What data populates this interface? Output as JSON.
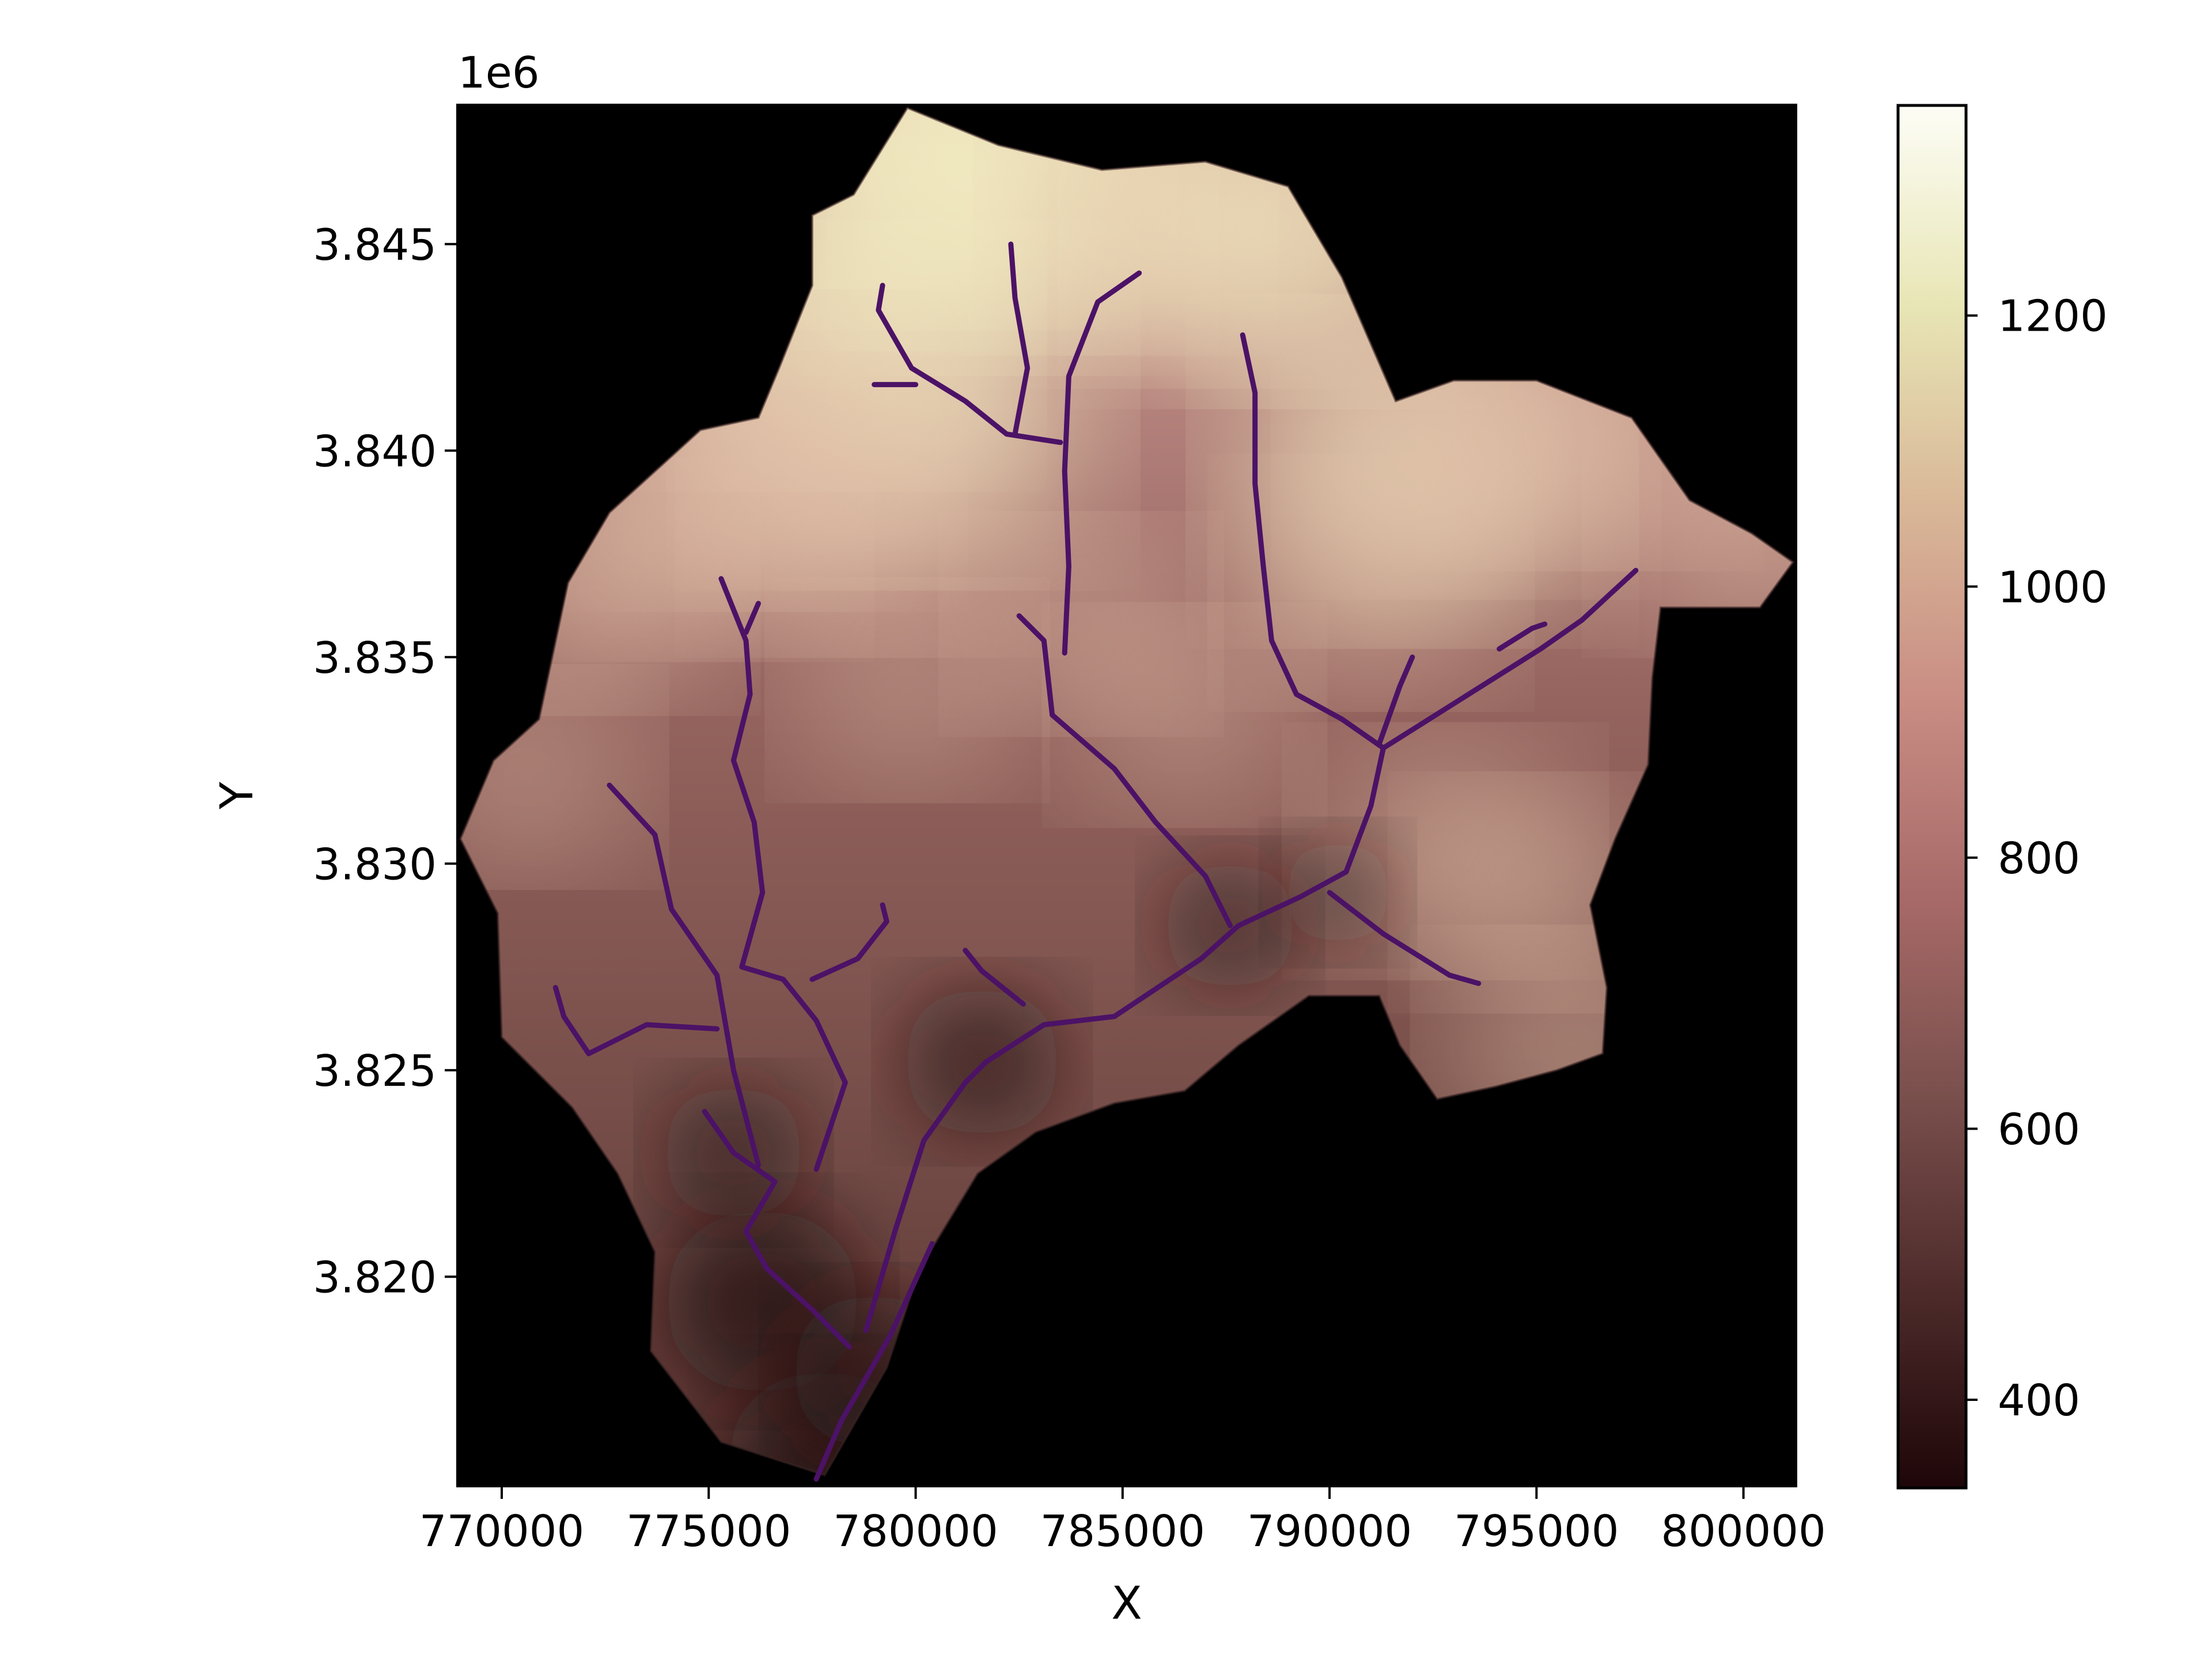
{
  "chart_data": {
    "type": "heatmap",
    "title": "",
    "xlabel": "X",
    "ylabel": "Y",
    "y_offset_label": "1e6",
    "xlim": [
      768900,
      801300
    ],
    "ylim": [
      3814900,
      3848400
    ],
    "x_ticks": [
      770000,
      775000,
      780000,
      785000,
      790000,
      795000,
      800000
    ],
    "x_tick_labels": [
      "770000",
      "775000",
      "780000",
      "785000",
      "790000",
      "795000",
      "800000"
    ],
    "y_ticks": [
      3820000,
      3825000,
      3830000,
      3835000,
      3840000,
      3845000
    ],
    "y_tick_labels": [
      "3.820",
      "3.825",
      "3.830",
      "3.835",
      "3.840",
      "3.845"
    ],
    "colorbar": {
      "vmin": 335,
      "vmax": 1355,
      "ticks": [
        400,
        600,
        800,
        1000,
        1200
      ],
      "tick_labels": [
        "400",
        "600",
        "800",
        "1000",
        "1200"
      ],
      "colors": [
        "#1e0608",
        "#4e2b2b",
        "#7a504d",
        "#a86a68",
        "#c98d84",
        "#d9b898",
        "#e8e6b6",
        "#fdfdf6"
      ]
    },
    "background_color": "#000000",
    "stream_color": "#4b1266",
    "grid": false,
    "watershed_boundary": [
      [
        779800,
        3848300
      ],
      [
        782000,
        3847400
      ],
      [
        784500,
        3846800
      ],
      [
        787000,
        3847000
      ],
      [
        789000,
        3846400
      ],
      [
        790300,
        3844200
      ],
      [
        791600,
        3841200
      ],
      [
        793000,
        3841700
      ],
      [
        795000,
        3841700
      ],
      [
        797300,
        3840800
      ],
      [
        798700,
        3838800
      ],
      [
        800200,
        3838000
      ],
      [
        801200,
        3837300
      ],
      [
        800400,
        3836200
      ],
      [
        798000,
        3836200
      ],
      [
        797800,
        3834500
      ],
      [
        797700,
        3832400
      ],
      [
        796900,
        3830600
      ],
      [
        796300,
        3829000
      ],
      [
        796700,
        3827000
      ],
      [
        796600,
        3825400
      ],
      [
        795500,
        3825000
      ],
      [
        794000,
        3824600
      ],
      [
        792600,
        3824300
      ],
      [
        791700,
        3825600
      ],
      [
        791200,
        3826800
      ],
      [
        789500,
        3826800
      ],
      [
        787800,
        3825600
      ],
      [
        786500,
        3824500
      ],
      [
        784800,
        3824200
      ],
      [
        782900,
        3823500
      ],
      [
        781500,
        3822500
      ],
      [
        780100,
        3820200
      ],
      [
        779300,
        3817800
      ],
      [
        777800,
        3815200
      ],
      [
        775300,
        3816000
      ],
      [
        773600,
        3818200
      ],
      [
        773700,
        3820600
      ],
      [
        772800,
        3822500
      ],
      [
        771700,
        3824100
      ],
      [
        770000,
        3825800
      ],
      [
        769900,
        3828800
      ],
      [
        769000,
        3830600
      ],
      [
        769800,
        3832500
      ],
      [
        770900,
        3833500
      ],
      [
        771600,
        3836800
      ],
      [
        772600,
        3838500
      ],
      [
        774800,
        3840500
      ],
      [
        776200,
        3840800
      ],
      [
        776700,
        3842000
      ],
      [
        777500,
        3844000
      ],
      [
        777500,
        3845700
      ],
      [
        778500,
        3846200
      ]
    ],
    "streams": [
      [
        [
          777600,
          3815100
        ],
        [
          778200,
          3816500
        ],
        [
          779400,
          3818600
        ],
        [
          780400,
          3820800
        ]
      ],
      [
        [
          778400,
          3818300
        ],
        [
          777500,
          3819200
        ],
        [
          776400,
          3820200
        ],
        [
          775900,
          3821100
        ],
        [
          776600,
          3822300
        ],
        [
          775600,
          3823000
        ],
        [
          774900,
          3824000
        ]
      ],
      [
        [
          778800,
          3818700
        ],
        [
          779500,
          3821100
        ],
        [
          780200,
          3823300
        ],
        [
          781200,
          3824700
        ],
        [
          781700,
          3825200
        ]
      ],
      [
        [
          781700,
          3825200
        ],
        [
          783100,
          3826100
        ],
        [
          784800,
          3826300
        ],
        [
          786900,
          3827700
        ],
        [
          787800,
          3828500
        ],
        [
          789300,
          3829200
        ],
        [
          790400,
          3829800
        ],
        [
          791000,
          3831400
        ],
        [
          791300,
          3832800
        ],
        [
          793200,
          3834000
        ],
        [
          795100,
          3835200
        ],
        [
          796100,
          3835900
        ],
        [
          797400,
          3837100
        ]
      ],
      [
        [
          794100,
          3835200
        ],
        [
          794900,
          3835700
        ],
        [
          795200,
          3835800
        ]
      ],
      [
        [
          787600,
          3828500
        ],
        [
          787000,
          3829700
        ],
        [
          785800,
          3831000
        ],
        [
          784800,
          3832300
        ],
        [
          783300,
          3833600
        ],
        [
          783100,
          3835400
        ],
        [
          782500,
          3836000
        ]
      ],
      [
        [
          783600,
          3835100
        ],
        [
          783700,
          3837200
        ],
        [
          783600,
          3839500
        ],
        [
          783700,
          3841800
        ],
        [
          784400,
          3843600
        ],
        [
          785400,
          3844300
        ]
      ],
      [
        [
          783500,
          3840200
        ],
        [
          782200,
          3840400
        ],
        [
          781200,
          3841200
        ],
        [
          779900,
          3842000
        ],
        [
          779100,
          3843400
        ],
        [
          779200,
          3844000
        ]
      ],
      [
        [
          782400,
          3840400
        ],
        [
          782700,
          3842000
        ],
        [
          782400,
          3843700
        ],
        [
          782300,
          3845000
        ]
      ],
      [
        [
          779000,
          3841600
        ],
        [
          780000,
          3841600
        ]
      ],
      [
        [
          791300,
          3832800
        ],
        [
          790300,
          3833500
        ],
        [
          789200,
          3834100
        ],
        [
          788600,
          3835400
        ],
        [
          788400,
          3837200
        ],
        [
          788200,
          3839200
        ],
        [
          788200,
          3841400
        ],
        [
          787900,
          3842800
        ]
      ],
      [
        [
          791200,
          3832900
        ],
        [
          791700,
          3834300
        ],
        [
          792000,
          3835000
        ]
      ],
      [
        [
          790000,
          3829300
        ],
        [
          791300,
          3828300
        ],
        [
          792900,
          3827300
        ],
        [
          793600,
          3827100
        ]
      ],
      [
        [
          776200,
          3822700
        ],
        [
          775600,
          3825000
        ],
        [
          775200,
          3827300
        ],
        [
          774100,
          3828900
        ],
        [
          773700,
          3830700
        ],
        [
          772600,
          3831900
        ]
      ],
      [
        [
          775200,
          3826000
        ],
        [
          773500,
          3826100
        ],
        [
          772100,
          3825400
        ],
        [
          771500,
          3826300
        ],
        [
          771300,
          3827000
        ]
      ],
      [
        [
          777600,
          3822600
        ],
        [
          778300,
          3824700
        ],
        [
          777600,
          3826200
        ],
        [
          776800,
          3827200
        ],
        [
          775800,
          3827500
        ],
        [
          776300,
          3829300
        ],
        [
          776100,
          3831000
        ],
        [
          775600,
          3832500
        ],
        [
          776000,
          3834100
        ],
        [
          775900,
          3835400
        ],
        [
          775300,
          3836900
        ]
      ],
      [
        [
          777500,
          3827200
        ],
        [
          778600,
          3827700
        ],
        [
          779300,
          3828600
        ],
        [
          779200,
          3829000
        ]
      ],
      [
        [
          775900,
          3835600
        ],
        [
          776200,
          3836300
        ]
      ],
      [
        [
          782600,
          3826600
        ],
        [
          781600,
          3827400
        ],
        [
          781200,
          3827900
        ]
      ]
    ],
    "hillshade_peaks": [
      [
        780100,
        3847800,
        1.0
      ],
      [
        781600,
        3846300,
        0.9
      ],
      [
        783300,
        3846600,
        0.85
      ],
      [
        786600,
        3845600,
        0.8
      ],
      [
        788900,
        3845300,
        0.85
      ],
      [
        777700,
        3843300,
        0.85
      ],
      [
        779700,
        3841100,
        0.9
      ],
      [
        776300,
        3840000,
        0.75
      ],
      [
        778900,
        3838700,
        0.7
      ],
      [
        774800,
        3838200,
        0.6
      ],
      [
        792000,
        3839500,
        0.85
      ],
      [
        793300,
        3840100,
        0.7
      ],
      [
        796300,
        3840400,
        0.6
      ],
      [
        800300,
        3838300,
        0.6
      ],
      [
        791000,
        3836800,
        0.55
      ],
      [
        772300,
        3836700,
        0.55
      ],
      [
        770600,
        3832100,
        0.45
      ],
      [
        792800,
        3830300,
        0.55
      ],
      [
        795100,
        3829300,
        0.5
      ],
      [
        795900,
        3825400,
        0.55
      ],
      [
        784000,
        3835800,
        0.45
      ],
      [
        786500,
        3833600,
        0.45
      ],
      [
        779800,
        3834200,
        0.45
      ]
    ],
    "hillshade_lows": [
      [
        776300,
        3819400,
        1.0
      ],
      [
        777800,
        3815500,
        1.0
      ],
      [
        779000,
        3817700,
        0.8
      ],
      [
        781600,
        3825200,
        0.75
      ],
      [
        787600,
        3828500,
        0.6
      ],
      [
        775600,
        3823000,
        0.65
      ],
      [
        790200,
        3829300,
        0.45
      ]
    ]
  }
}
